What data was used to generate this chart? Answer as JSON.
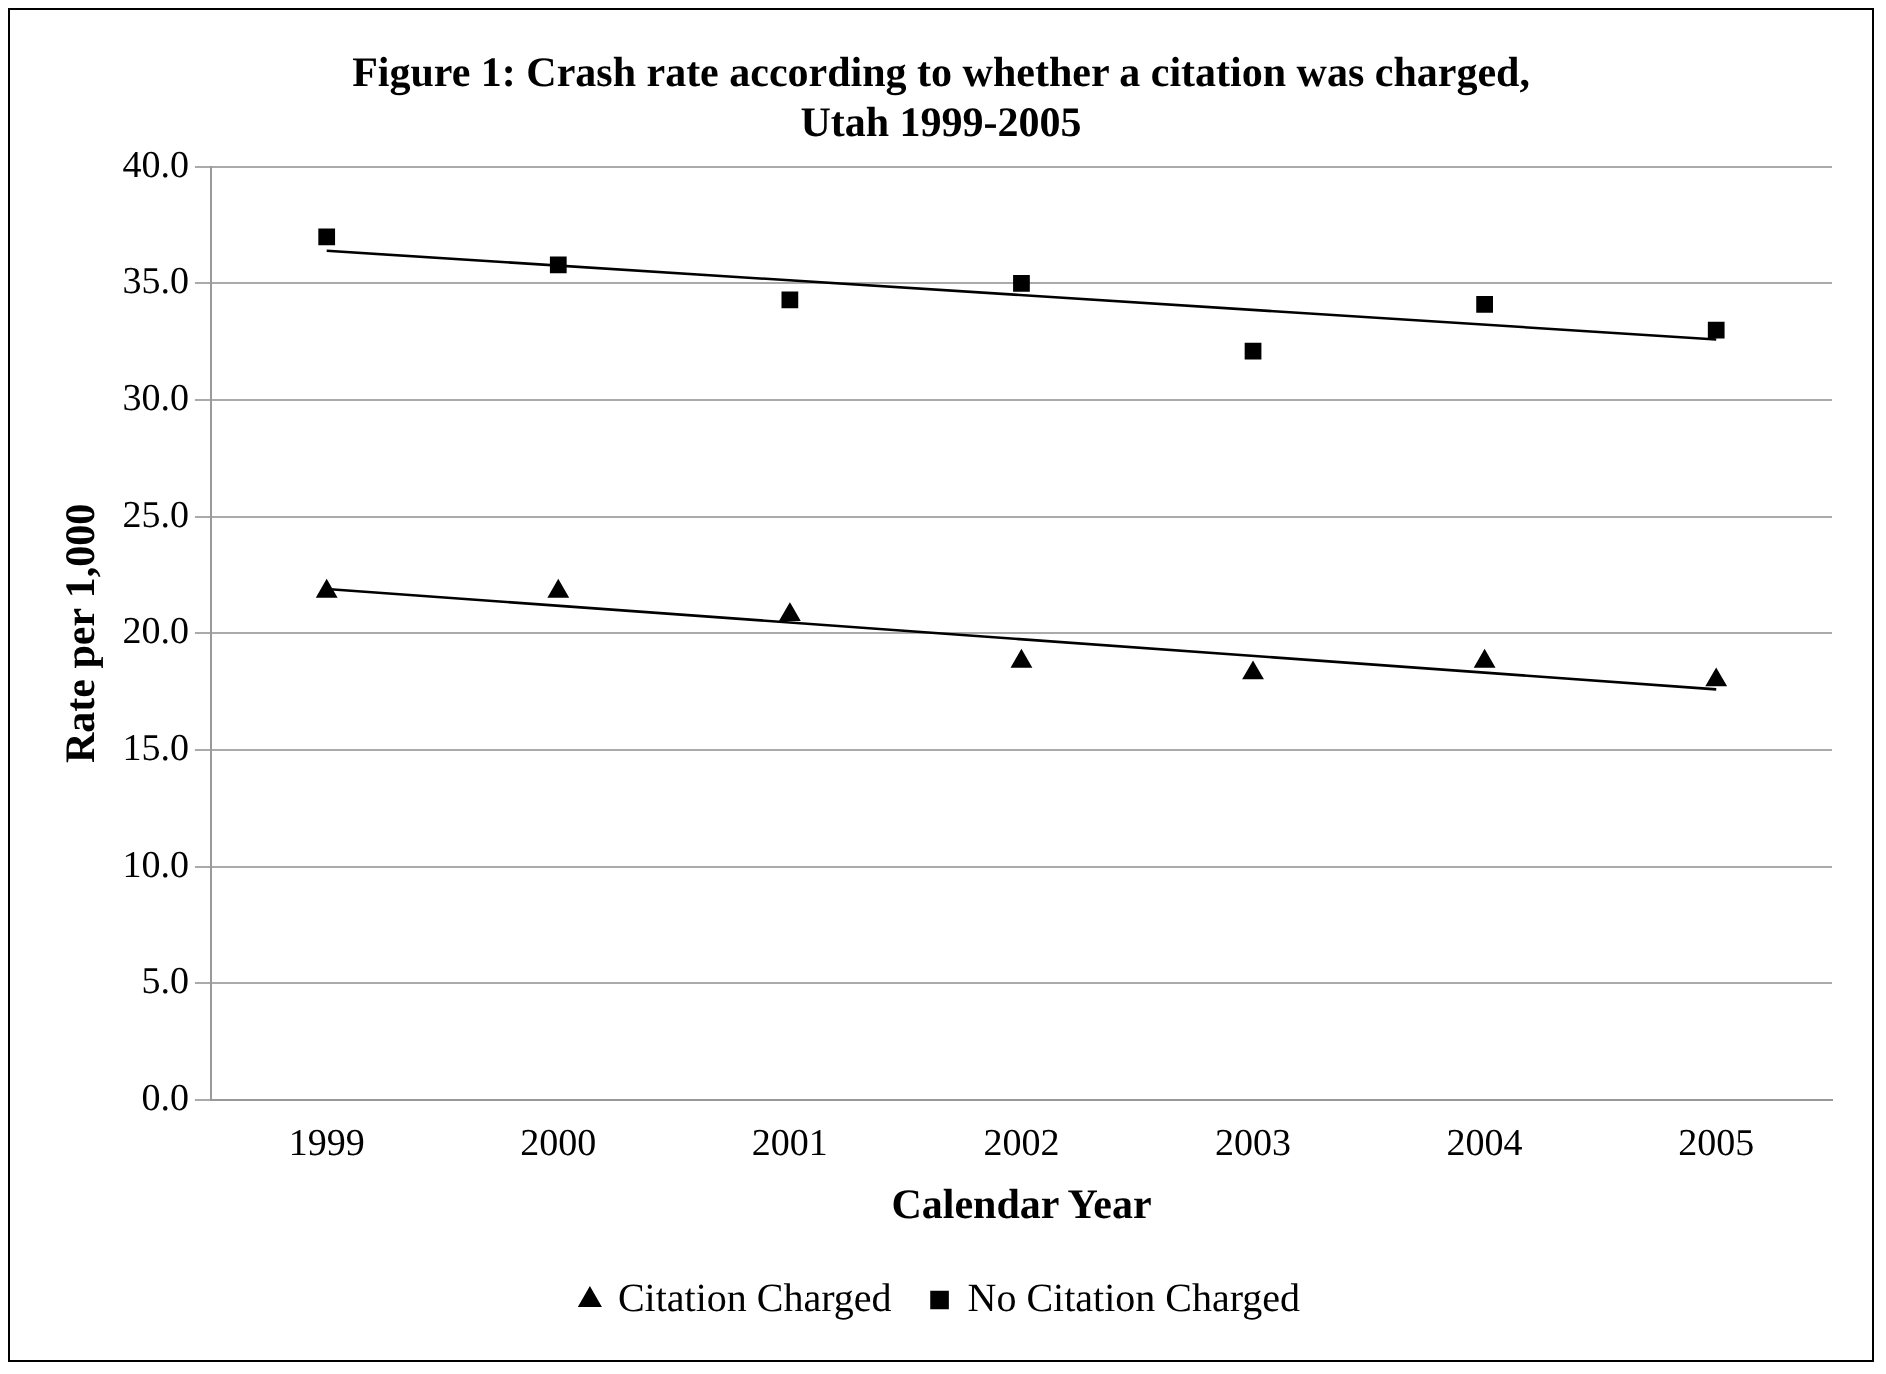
{
  "chart_data": {
    "type": "scatter",
    "title": "Figure 1: Crash rate according to whether a citation was charged, Utah 1999-2005",
    "xlabel": "Calendar Year",
    "ylabel": "Rate per 1,000",
    "categories": [
      "1999",
      "2000",
      "2001",
      "2002",
      "2003",
      "2004",
      "2005"
    ],
    "series": [
      {
        "name": "Citation Charged",
        "color": "#000000",
        "marker": "triangle",
        "values": [
          21.8,
          21.8,
          20.8,
          18.8,
          18.3,
          18.8,
          18.0
        ]
      },
      {
        "name": "No Citation Charged",
        "color": "#000000",
        "marker": "square",
        "values": [
          37.0,
          35.8,
          34.3,
          35.0,
          32.1,
          34.1,
          33.0
        ]
      },
      {
        "type": "line",
        "color": "#000000",
        "marker": "none",
        "line_style": "solid",
        "values": [
          21.9,
          null,
          null,
          null,
          null,
          null,
          17.6
        ]
      },
      {
        "type": "line",
        "color": "#000000",
        "marker": "none",
        "line_style": "solid",
        "values": [
          36.4,
          null,
          null,
          null,
          null,
          null,
          32.6
        ]
      }
    ],
    "ylim": [
      0,
      40
    ],
    "yticks": [
      {
        "value": 0,
        "label": "0.0"
      },
      {
        "value": 5,
        "label": "5.0"
      },
      {
        "value": 10,
        "label": "10.0"
      },
      {
        "value": 15,
        "label": "15.0"
      },
      {
        "value": 20,
        "label": "20.0"
      },
      {
        "value": 25,
        "label": "25.0"
      },
      {
        "value": 30,
        "label": "30.0"
      },
      {
        "value": 35,
        "label": "35.0"
      },
      {
        "value": 40,
        "label": "40.0"
      }
    ],
    "grid": "y",
    "legend": "bottom"
  }
}
